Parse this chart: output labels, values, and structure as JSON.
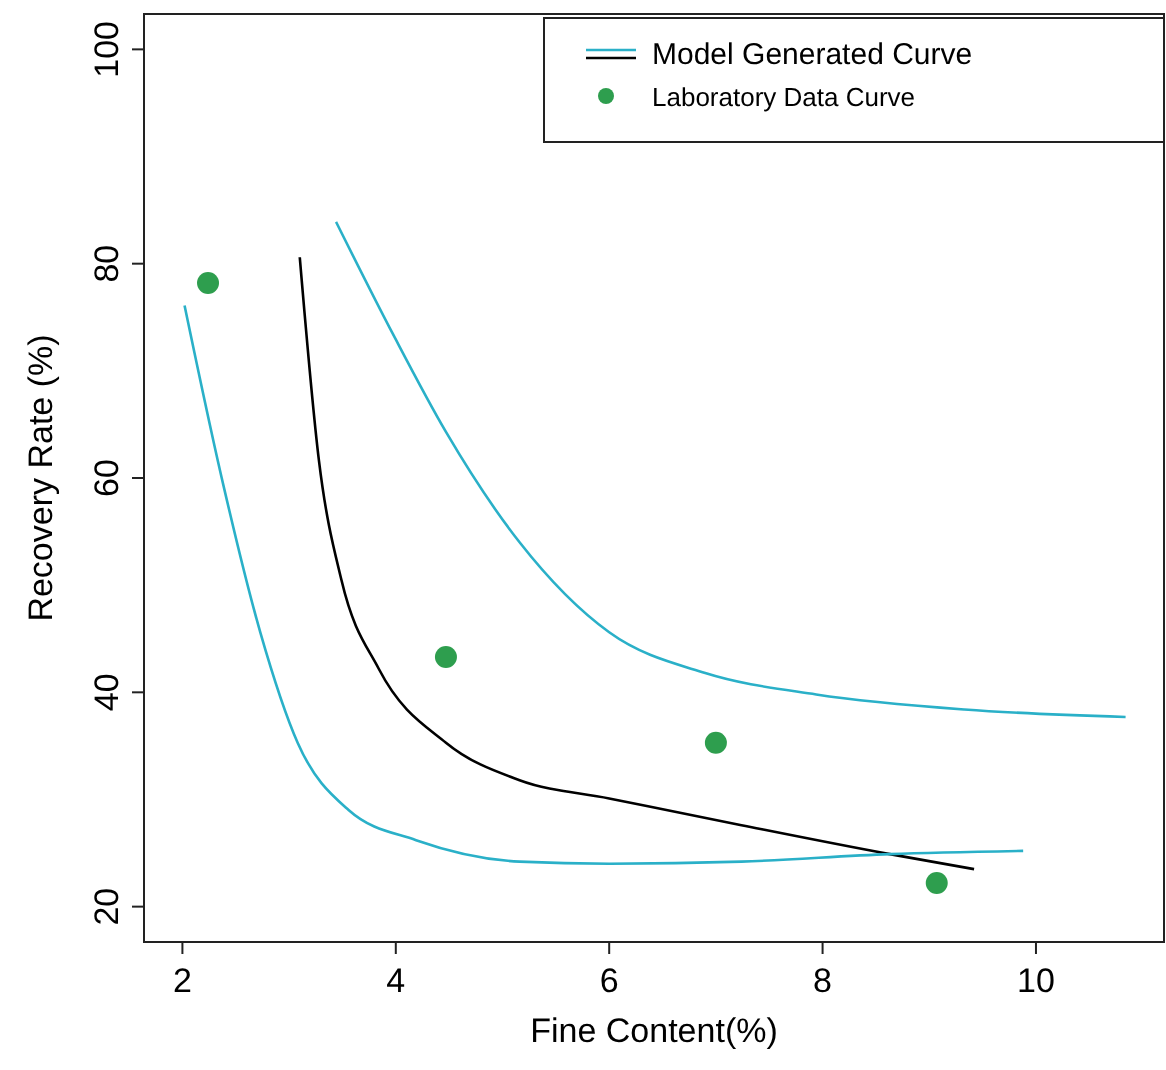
{
  "chart_data": {
    "type": "line",
    "xlabel": "Fine Content(%)",
    "ylabel": "Recovery Rate (%)",
    "xlim": [
      1.64,
      11.2
    ],
    "ylim": [
      16.7,
      103.3
    ],
    "xticks": [
      2,
      4,
      6,
      8,
      10
    ],
    "yticks": [
      20,
      40,
      60,
      80,
      100
    ],
    "grid": false,
    "legend": "top right",
    "line_style": "solid",
    "series": [
      {
        "name": "Model Generated Curve",
        "color": "#2ab0c8",
        "marker": "none",
        "x": [
          3.44,
          3.98,
          4.47,
          5.16,
          6,
          6.9,
          7.94,
          9.33,
          10.84
        ],
        "values": [
          83.9,
          73.3,
          64.3,
          54.0,
          45.6,
          41.8,
          39.8,
          38.4,
          37.7
        ]
      },
      {
        "color": "#000000",
        "marker": "none",
        "x": [
          3.1,
          3.28,
          3.49,
          3.84,
          4.47,
          5.16,
          6,
          7.24,
          8.63,
          9.42
        ],
        "values": [
          80.6,
          61.6,
          50.5,
          42.2,
          35.3,
          31.8,
          30.1,
          27.6,
          24.9,
          23.5
        ]
      },
      {
        "color": "#2ab0c8",
        "marker": "none",
        "x": [
          2.02,
          2.38,
          2.73,
          3.08,
          3.56,
          4.19,
          5.16,
          6,
          7.24,
          8.63,
          9.88
        ],
        "values": [
          76.1,
          59.5,
          45.6,
          35.3,
          29.0,
          26.2,
          24.2,
          24.0,
          24.2,
          24.9,
          25.2
        ]
      },
      {
        "name": "Laboratory Data Curve",
        "type": "scatter",
        "color": "#2e9e4e",
        "marker": "circle",
        "x": [
          2.24,
          4.47,
          7.0,
          9.07
        ],
        "values": [
          78.2,
          43.3,
          35.3,
          22.2
        ]
      }
    ]
  }
}
